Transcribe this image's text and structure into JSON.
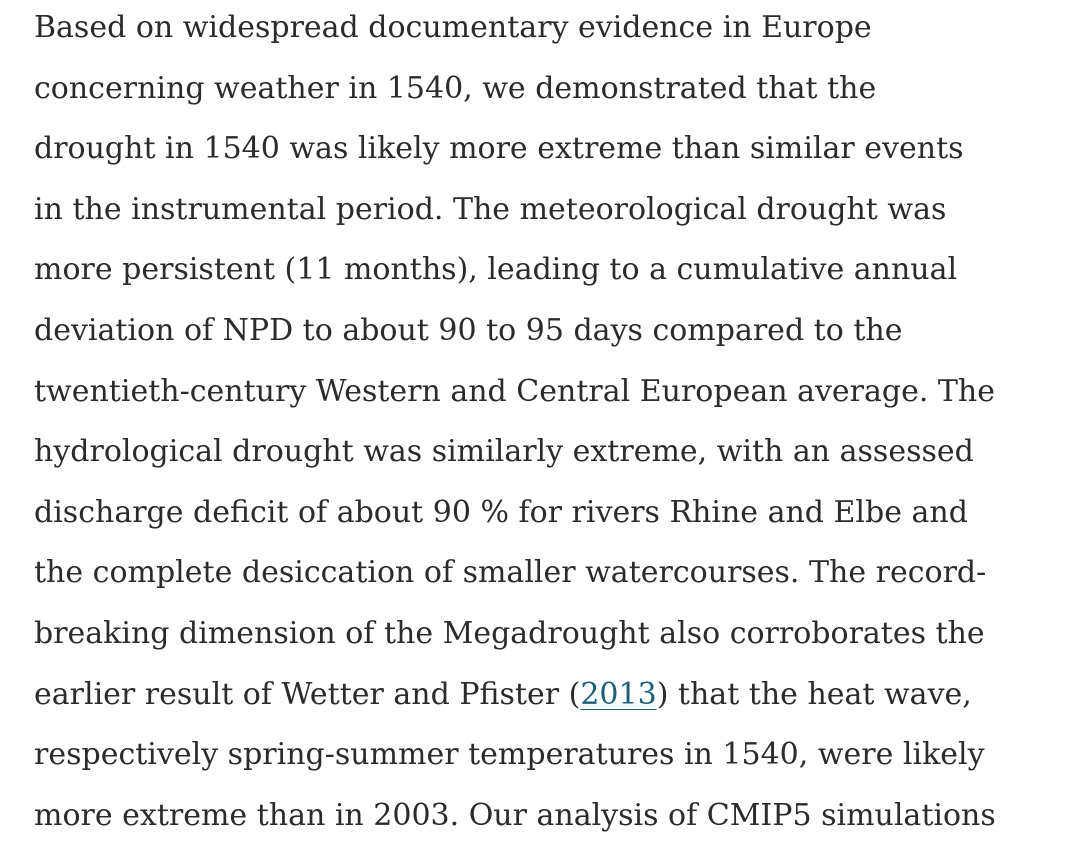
{
  "paragraph": {
    "lines": [
      "Based on widespread documentary evidence in Europe",
      "concerning weather in 1540, we demonstrated that the",
      "drought in 1540 was likely more extreme than similar events",
      "in the instrumental period. The meteorological drought was",
      "more persistent (11 months), leading to a cumulative annual",
      "deviation of NPD to about 90 to 95 days compared to the",
      "twentieth-century Western and Central European average. The",
      "hydrological drought was similarly extreme, with an assessed",
      "discharge deficit of about 90 % for rivers Rhine and Elbe and",
      "the complete desiccation of smaller watercourses. The record-",
      "breaking dimension of the Megadrought also corroborates the",
      [
        "earlier result of Wetter and Pfister (",
        "2013",
        ") that the heat wave,"
      ],
      "respectively spring-summer temperatures in 1540, were likely",
      "more extreme than in 2003. Our analysis of CMIP5 simulations"
    ]
  }
}
